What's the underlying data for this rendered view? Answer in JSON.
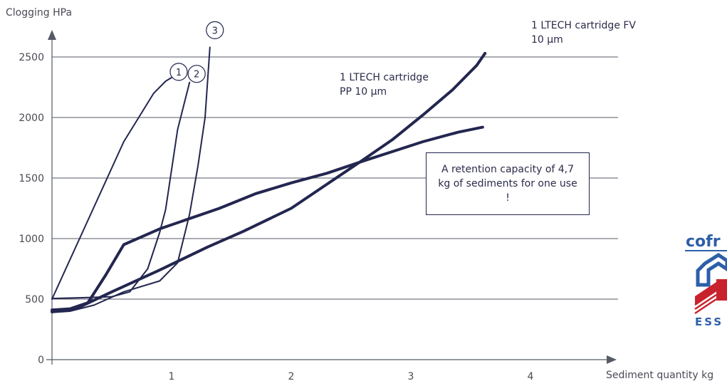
{
  "chart_data": {
    "type": "line",
    "ylabel": "Clogging HPa",
    "xlabel": "Sediment quantity kg",
    "xlim": [
      0,
      4.7
    ],
    "ylim": [
      0,
      2500
    ],
    "x_ticks": [
      1,
      2,
      3,
      4
    ],
    "y_ticks": [
      0,
      500,
      1000,
      1500,
      2000,
      2500
    ],
    "grid": "horizontal",
    "colors": {
      "line": "#23264f",
      "grid": "#555a66",
      "text": "#4a4a55"
    },
    "series": [
      {
        "name": "1",
        "x": [
          0.0,
          0.3,
          0.6,
          0.85,
          0.95,
          1.0
        ],
        "y": [
          500,
          1150,
          1800,
          2200,
          2300,
          2330
        ]
      },
      {
        "name": "2",
        "x": [
          0.0,
          0.2,
          0.5,
          0.65,
          0.8,
          0.9,
          0.95,
          1.05,
          1.15
        ],
        "y": [
          505,
          510,
          520,
          560,
          750,
          1050,
          1240,
          1900,
          2290
        ]
      },
      {
        "name": "3",
        "x": [
          0.0,
          0.15,
          0.35,
          0.6,
          0.9,
          1.05,
          1.15,
          1.22,
          1.28,
          1.32
        ],
        "y": [
          390,
          400,
          450,
          560,
          650,
          800,
          1200,
          1600,
          2000,
          2580
        ]
      },
      {
        "name": "1 LTECH cartridge PP 10 µm",
        "x": [
          0.0,
          0.15,
          0.3,
          0.45,
          0.6,
          0.9,
          1.4,
          1.7,
          2.0,
          2.3,
          2.6,
          2.85,
          3.1,
          3.4,
          3.6
        ],
        "y": [
          410,
          420,
          470,
          700,
          950,
          1080,
          1250,
          1370,
          1460,
          1540,
          1640,
          1720,
          1800,
          1880,
          1920
        ]
      },
      {
        "name": "1 LTECH cartridge FV 10 µm",
        "x": [
          0.0,
          0.2,
          0.5,
          0.9,
          1.3,
          1.6,
          2.0,
          2.3,
          2.6,
          2.85,
          3.1,
          3.35,
          3.55,
          3.62
        ],
        "y": [
          395,
          420,
          560,
          740,
          930,
          1060,
          1250,
          1450,
          1650,
          1820,
          2020,
          2230,
          2430,
          2530
        ]
      }
    ],
    "annotations": {
      "pp_label": "1 LTECH cartridge\nPP 10 µm",
      "fv_label": "1 LTECH cartridge FV\n10 µm",
      "callout": "A retention capacity of 4,7 kg of sediments for one use !",
      "marker_1": "1",
      "marker_2": "2",
      "marker_3": "3"
    }
  },
  "logo": {
    "text": "cofr",
    "subtext": "ESS",
    "colors": {
      "blue": "#2d5fa8",
      "red": "#c8232c"
    }
  }
}
